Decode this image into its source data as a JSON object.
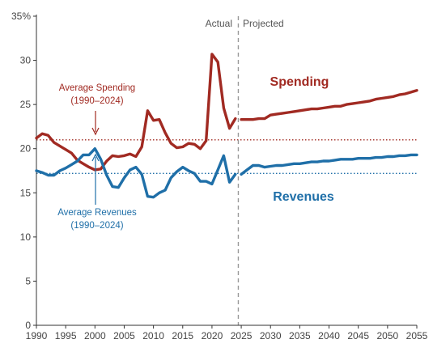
{
  "chart_data": {
    "type": "line",
    "title": "",
    "xlabel": "",
    "ylabel": "",
    "xlim": [
      1990,
      2055
    ],
    "ylim": [
      0,
      35
    ],
    "x_ticks": [
      "1990",
      "1995",
      "2000",
      "2005",
      "2010",
      "2015",
      "2020",
      "2025",
      "2030",
      "2035",
      "2040",
      "2045",
      "2050",
      "2055"
    ],
    "y_ticks": [
      "0",
      "5",
      "10",
      "15",
      "20",
      "25",
      "30",
      "35%"
    ],
    "divider": {
      "x": 2024.5,
      "left_label": "Actual",
      "right_label": "Projected"
    },
    "colors": {
      "spending": "#a12a22",
      "revenues": "#1f6fa8",
      "divider": "#999999",
      "axis": "#333333"
    },
    "series": [
      {
        "name": "Spending",
        "x": [
          1990,
          1991,
          1992,
          1993,
          1994,
          1995,
          1996,
          1997,
          1998,
          1999,
          2000,
          2001,
          2002,
          2003,
          2004,
          2005,
          2006,
          2007,
          2008,
          2009,
          2010,
          2011,
          2012,
          2013,
          2014,
          2015,
          2016,
          2017,
          2018,
          2019,
          2020,
          2021,
          2022,
          2023,
          2024
        ],
        "values": [
          21.2,
          21.7,
          21.5,
          20.7,
          20.3,
          19.9,
          19.5,
          18.7,
          18.3,
          17.9,
          17.6,
          17.7,
          18.6,
          19.2,
          19.1,
          19.2,
          19.4,
          19.1,
          20.2,
          24.3,
          23.2,
          23.3,
          21.8,
          20.6,
          20.1,
          20.2,
          20.6,
          20.5,
          20.0,
          20.9,
          30.7,
          29.8,
          24.6,
          22.3,
          23.4
        ]
      },
      {
        "name": "Spending (projected)",
        "x": [
          2025,
          2026,
          2027,
          2028,
          2029,
          2030,
          2031,
          2032,
          2033,
          2034,
          2035,
          2036,
          2037,
          2038,
          2039,
          2040,
          2041,
          2042,
          2043,
          2044,
          2045,
          2046,
          2047,
          2048,
          2049,
          2050,
          2051,
          2052,
          2053,
          2054,
          2055
        ],
        "values": [
          23.3,
          23.3,
          23.3,
          23.4,
          23.4,
          23.8,
          23.9,
          24.0,
          24.1,
          24.2,
          24.3,
          24.4,
          24.5,
          24.5,
          24.6,
          24.7,
          24.8,
          24.8,
          25.0,
          25.1,
          25.2,
          25.3,
          25.4,
          25.6,
          25.7,
          25.8,
          25.9,
          26.1,
          26.2,
          26.4,
          26.6
        ]
      },
      {
        "name": "Revenues",
        "x": [
          1990,
          1991,
          1992,
          1993,
          1994,
          1995,
          1996,
          1997,
          1998,
          1999,
          2000,
          2001,
          2002,
          2003,
          2004,
          2005,
          2006,
          2007,
          2008,
          2009,
          2010,
          2011,
          2012,
          2013,
          2014,
          2015,
          2016,
          2017,
          2018,
          2019,
          2020,
          2021,
          2022,
          2023,
          2024
        ],
        "values": [
          17.5,
          17.3,
          17.0,
          17.0,
          17.5,
          17.8,
          18.2,
          18.6,
          19.3,
          19.3,
          20.0,
          18.8,
          17.0,
          15.7,
          15.6,
          16.7,
          17.6,
          17.9,
          17.1,
          14.6,
          14.5,
          15.0,
          15.3,
          16.7,
          17.4,
          17.9,
          17.5,
          17.2,
          16.3,
          16.3,
          16.0,
          17.6,
          19.2,
          16.2,
          17.1
        ]
      },
      {
        "name": "Revenues (projected)",
        "x": [
          2025,
          2026,
          2027,
          2028,
          2029,
          2030,
          2031,
          2032,
          2033,
          2034,
          2035,
          2036,
          2037,
          2038,
          2039,
          2040,
          2041,
          2042,
          2043,
          2044,
          2045,
          2046,
          2047,
          2048,
          2049,
          2050,
          2051,
          2052,
          2053,
          2054,
          2055
        ],
        "values": [
          17.1,
          17.6,
          18.1,
          18.1,
          17.9,
          18.0,
          18.1,
          18.1,
          18.2,
          18.3,
          18.3,
          18.4,
          18.5,
          18.5,
          18.6,
          18.6,
          18.7,
          18.8,
          18.8,
          18.8,
          18.9,
          18.9,
          18.9,
          19.0,
          19.0,
          19.1,
          19.1,
          19.2,
          19.2,
          19.3,
          19.3
        ]
      }
    ],
    "reference_lines": [
      {
        "name": "Average Spending (1990–2024)",
        "value": 21.0
      },
      {
        "name": "Average Revenues (1990–2024)",
        "value": 17.2
      }
    ],
    "labels": {
      "spending": "Spending",
      "revenues": "Revenues",
      "avg_spending_l1": "Average Spending",
      "avg_spending_l2": "(1990–2024)",
      "avg_revenues_l1": "Average Revenues",
      "avg_revenues_l2": "(1990–2024)"
    }
  }
}
